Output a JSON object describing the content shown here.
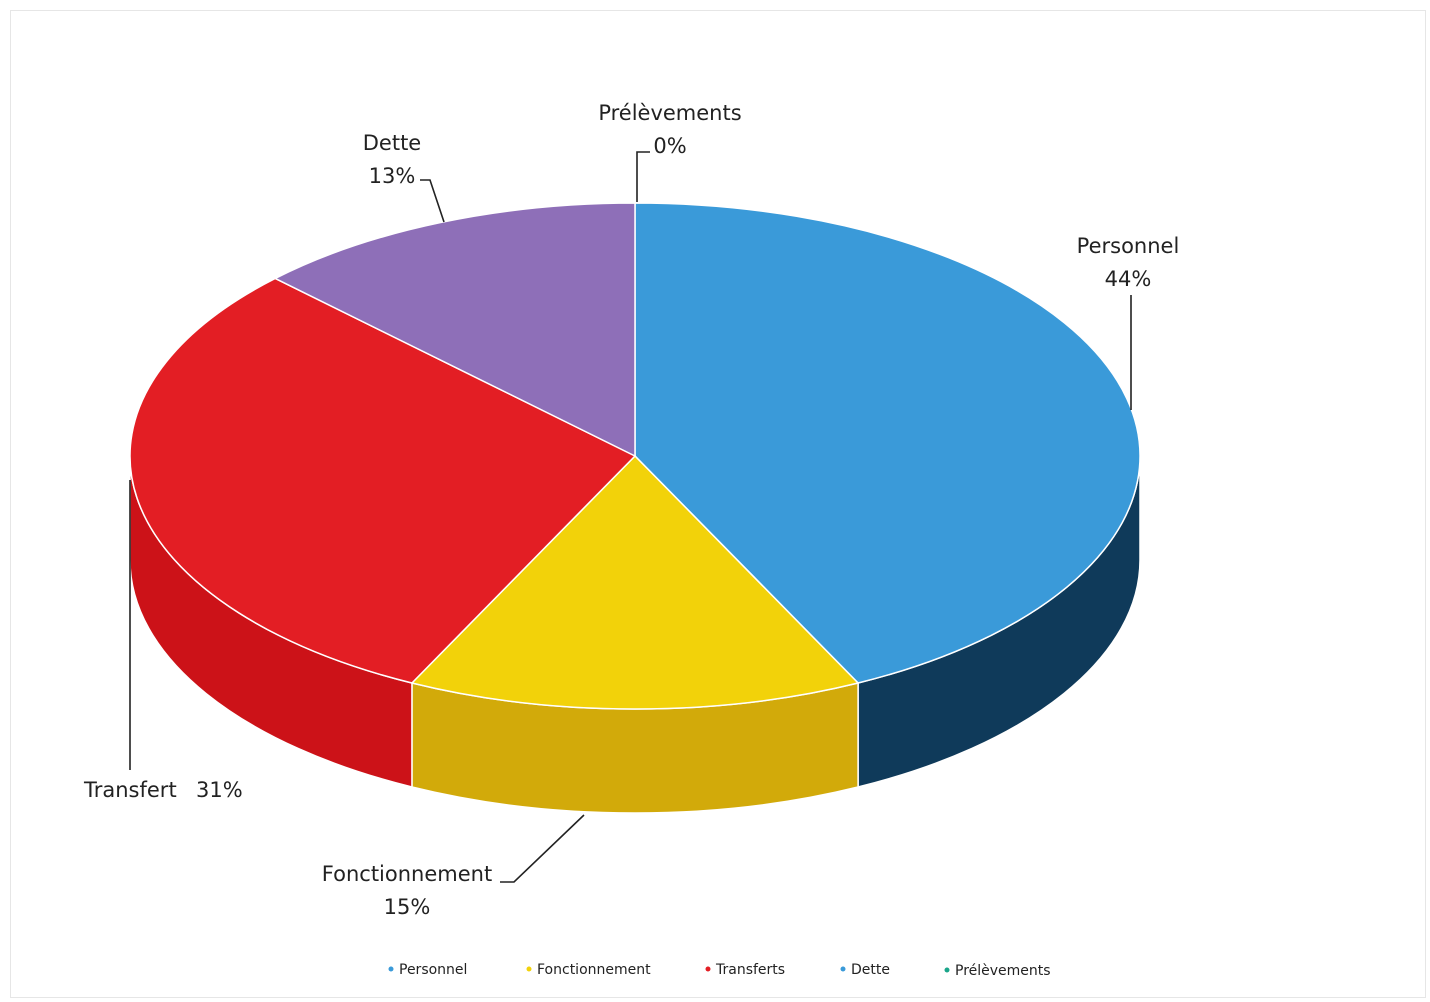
{
  "chart_data": {
    "type": "pie",
    "style": "3d",
    "slices": [
      {
        "name": "Personnel",
        "value": 44,
        "color": "#3a9ad9",
        "side_color": "#0f3a5a",
        "label_name": "Personnel",
        "label_pct": "44%"
      },
      {
        "name": "Fonctionnement",
        "value": 15,
        "color": "#f2d20a",
        "side_color": "#d2aa0a",
        "label_name": "Fonctionnement",
        "label_pct": "15%"
      },
      {
        "name": "Transferts",
        "value": 31,
        "color": "#e31e24",
        "side_color": "#cc1218",
        "label_name": "Transfert",
        "label_pct": "31%"
      },
      {
        "name": "Dette",
        "value": 13,
        "color": "#8e6fb8",
        "side_color": "#6d4f96",
        "label_name": "Dette",
        "label_pct": "13%"
      },
      {
        "name": "Prélèvements",
        "value": 0,
        "color": "#1aa58a",
        "side_color": "#12725f",
        "label_name": "Prélèvements",
        "label_pct": "0%"
      }
    ],
    "legend": {
      "position": "bottom",
      "items": [
        {
          "label": "Personnel",
          "color": "#3a9ad9"
        },
        {
          "label": "Fonctionnement",
          "color": "#f2d20a"
        },
        {
          "label": "Transferts",
          "color": "#e31e24"
        },
        {
          "label": "Dette",
          "color": "#3a9ad9"
        },
        {
          "label": "Prélèvements",
          "color": "#1aa58a"
        }
      ]
    }
  }
}
